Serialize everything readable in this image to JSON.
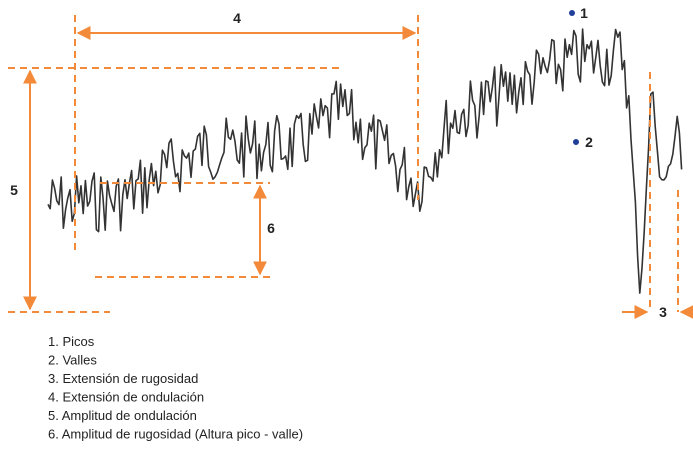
{
  "markers": [
    "1",
    "2",
    "3",
    "4",
    "5",
    "6"
  ],
  "legend": [
    "1. Picos",
    "2. Valles",
    "3. Extensión de rugosidad",
    "4. Extensión de ondulación",
    "5. Amplitud de ondulación",
    "6. Amplitud de rugosidad (Altura pico - valle)"
  ]
}
